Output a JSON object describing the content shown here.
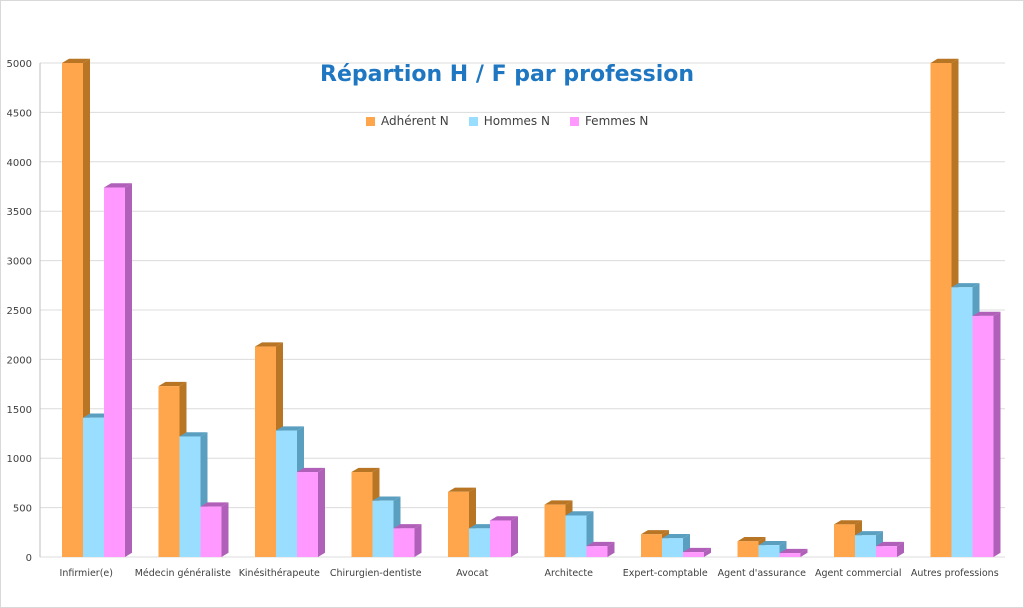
{
  "chart_data": {
    "type": "bar",
    "title": "Répartion H / F par profession",
    "categories": [
      "Infirmier(e)",
      "Médecin généraliste",
      "Kinésithérapeute",
      "Chirurgien-dentiste",
      "Avocat",
      "Architecte",
      "Expert-comptable",
      "Agent d'assurance",
      "Agent commercial",
      "Autres professions"
    ],
    "series": [
      {
        "name": "Adhérent N",
        "color": "#ffa64d",
        "side_color": "#b87524",
        "values": [
          5000,
          1730,
          2130,
          860,
          660,
          530,
          230,
          160,
          330,
          5000
        ]
      },
      {
        "name": "Hommes N",
        "color": "#99ddff",
        "side_color": "#5b9fc0",
        "values": [
          1410,
          1220,
          1280,
          570,
          290,
          420,
          190,
          120,
          220,
          2730
        ]
      },
      {
        "name": "Femmes N",
        "color": "#ff99ff",
        "side_color": "#b060b8",
        "values": [
          3740,
          510,
          860,
          290,
          370,
          110,
          50,
          40,
          110,
          2440
        ]
      }
    ],
    "ylim": [
      0,
      5000
    ],
    "yticks": [
      "0",
      "500",
      "1000",
      "1500",
      "2000",
      "2500",
      "3000",
      "3500",
      "4000",
      "4500",
      "5000"
    ],
    "grid": true,
    "legend_position": "top-center"
  }
}
